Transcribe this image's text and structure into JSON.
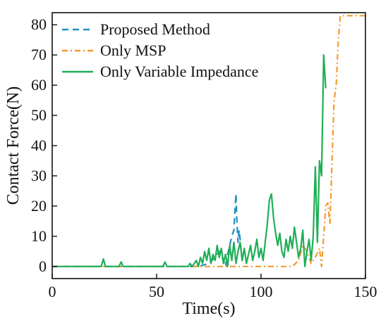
{
  "chart_data": {
    "type": "line",
    "title": "",
    "xlabel": "Time(s)",
    "ylabel": "Contact Force(N)",
    "xlim": [
      0,
      150
    ],
    "ylim": [
      -4,
      84
    ],
    "x_ticks": [
      0,
      50,
      100,
      150
    ],
    "y_ticks": [
      0,
      10,
      20,
      30,
      40,
      50,
      60,
      70,
      80
    ],
    "grid": false,
    "legend_position": "top-left",
    "series": [
      {
        "name": "Proposed Method",
        "color": "#1f8fc4",
        "style": "dashed",
        "x": [
          0,
          70,
          75,
          78,
          80,
          82,
          83,
          84,
          85,
          86,
          87,
          87.5,
          88,
          88.5,
          89,
          89.5,
          90,
          90.5,
          91
        ],
        "y": [
          0,
          0,
          1,
          3,
          5,
          2,
          0,
          4,
          7,
          10,
          12,
          18,
          24,
          14,
          8,
          12,
          9,
          5,
          2
        ]
      },
      {
        "name": "Only MSP",
        "color": "#f39a30",
        "style": "dashdot",
        "x": [
          0,
          95,
          100,
          110,
          115,
          118,
          120,
          122,
          124,
          126,
          128,
          129,
          130,
          131,
          132,
          133,
          134,
          135,
          136,
          137,
          138,
          140,
          143,
          148,
          150
        ],
        "y": [
          0,
          0,
          0,
          0,
          0,
          2,
          7,
          5,
          1,
          3,
          6,
          0,
          10,
          20,
          21,
          14,
          35,
          55,
          60,
          75,
          83,
          83,
          83,
          83,
          83
        ]
      },
      {
        "name": "Only Variable Impedance",
        "color": "#1fae57",
        "style": "solid",
        "x": [
          0,
          23.5,
          24.5,
          25.5,
          32,
          33,
          34,
          53,
          54,
          55,
          65,
          66,
          67,
          69,
          70,
          71,
          72,
          73,
          74,
          75,
          76,
          77,
          78,
          79,
          80,
          81,
          82,
          83,
          84,
          85,
          86,
          87,
          88,
          89,
          90,
          91,
          92,
          93,
          94,
          95,
          96,
          97,
          98,
          99,
          100,
          101,
          102,
          103,
          104,
          105,
          106,
          107,
          108,
          109,
          110,
          111,
          112,
          113,
          114,
          115,
          116,
          117,
          118,
          119,
          120,
          121,
          122,
          123,
          124,
          125,
          126,
          127,
          128,
          129,
          130,
          131
        ],
        "y": [
          0,
          0,
          2.5,
          0,
          0,
          1.5,
          0,
          0,
          1.5,
          0,
          0,
          1,
          0,
          2,
          0,
          3,
          1,
          5,
          2,
          6,
          1,
          4,
          2,
          7,
          3,
          6,
          1,
          4,
          0,
          7,
          2,
          8,
          1,
          5,
          8,
          2,
          6,
          1,
          4,
          7,
          2,
          5,
          9,
          3,
          6,
          2,
          8,
          14,
          22,
          24,
          16,
          11,
          7,
          11,
          5,
          3,
          9,
          5,
          10,
          6,
          13,
          8,
          3,
          6,
          12,
          0,
          5,
          9,
          2,
          10,
          33,
          8,
          35,
          30,
          70,
          59
        ]
      }
    ]
  }
}
